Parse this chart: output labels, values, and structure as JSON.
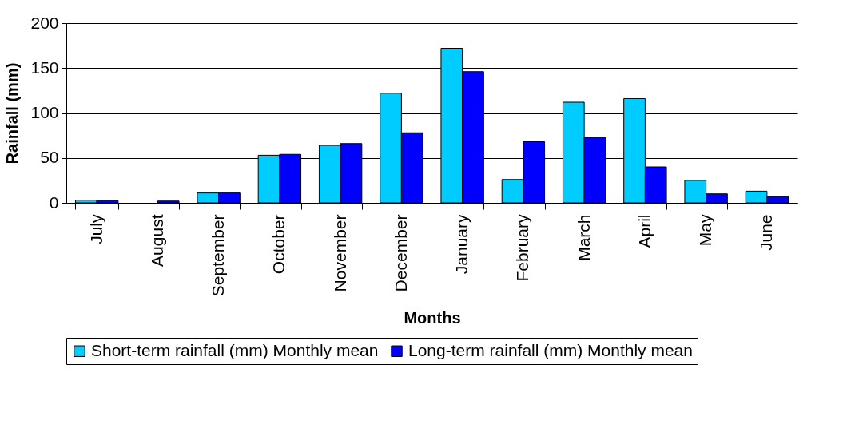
{
  "chart_data": {
    "type": "bar",
    "xlabel": "Months",
    "ylabel": "Rainfall (mm)",
    "categories": [
      "July",
      "August",
      "September",
      "October",
      "November",
      "December",
      "January",
      "February",
      "March",
      "April",
      "May",
      "June"
    ],
    "series": [
      {
        "name": "Short-term rainfall (mm) Monthly mean",
        "color": "#00ccff",
        "values": [
          3,
          null,
          11,
          53,
          64,
          122,
          172,
          26,
          112,
          116,
          25,
          13
        ]
      },
      {
        "name": "Long-term rainfall (mm) Monthly mean",
        "color": "#0000ff",
        "values": [
          3,
          2,
          11,
          54,
          66,
          78,
          146,
          68,
          73,
          40,
          10,
          7
        ]
      }
    ],
    "ylim": [
      0,
      200
    ],
    "yticks": [
      0,
      50,
      100,
      150,
      200
    ],
    "grid": "y",
    "legend": "bottom"
  }
}
